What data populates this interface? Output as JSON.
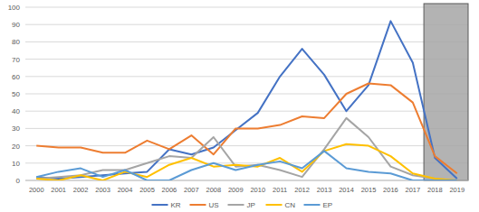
{
  "chart_data": {
    "type": "line",
    "categories": [
      "2000",
      "2001",
      "2002",
      "2003",
      "2004",
      "2005",
      "2006",
      "2007",
      "2008",
      "2009",
      "2010",
      "2011",
      "2012",
      "2013",
      "2014",
      "2015",
      "2016",
      "2017",
      "2018",
      "2019"
    ],
    "series": [
      {
        "name": "KR",
        "color": "#4472c4",
        "values": [
          2,
          1,
          2,
          3,
          4,
          5,
          18,
          15,
          19,
          29,
          39,
          60,
          76,
          61,
          40,
          55,
          92,
          68,
          13,
          1
        ]
      },
      {
        "name": "US",
        "color": "#ed7d31",
        "values": [
          20,
          19,
          19,
          16,
          16,
          23,
          18,
          26,
          15,
          30,
          30,
          32,
          37,
          36,
          50,
          56,
          55,
          45,
          14,
          4
        ]
      },
      {
        "name": "JP",
        "color": "#a5a5a5",
        "values": [
          1,
          2,
          3,
          6,
          6,
          10,
          14,
          13,
          25,
          8,
          9,
          6,
          2,
          18,
          36,
          25,
          8,
          3,
          1,
          0
        ]
      },
      {
        "name": "CN",
        "color": "#ffc000",
        "values": [
          1,
          0,
          3,
          0,
          5,
          2,
          9,
          13,
          8,
          9,
          8,
          13,
          5,
          17,
          21,
          20,
          14,
          4,
          1,
          0
        ]
      },
      {
        "name": "EP",
        "color": "#5b9bd5",
        "values": [
          2,
          5,
          7,
          2,
          6,
          0,
          0,
          6,
          10,
          6,
          9,
          11,
          7,
          17,
          7,
          5,
          4,
          0,
          0,
          0
        ]
      }
    ],
    "ylim": [
      0,
      100
    ],
    "yticks": [
      0,
      10,
      20,
      30,
      40,
      50,
      60,
      70,
      80,
      90,
      100
    ],
    "grid": true,
    "legend": "bottom"
  }
}
